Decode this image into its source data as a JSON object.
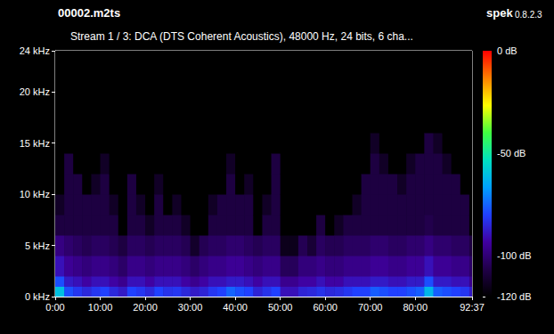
{
  "chart_data": {
    "type": "heatmap",
    "title": "00002.m2ts",
    "subtitle": "Stream 1 / 3: DCA (DTS Coherent Acoustics), 48000 Hz, 24 bits, 6 cha...",
    "annotations": [
      "spek",
      "0.8.2.3"
    ],
    "grid": false,
    "xlim": [
      0,
      5557
    ],
    "xticks": [
      {
        "value": 0,
        "label": "0:00"
      },
      {
        "value": 600,
        "label": "10:00"
      },
      {
        "value": 1200,
        "label": "20:00"
      },
      {
        "value": 1800,
        "label": "30:00"
      },
      {
        "value": 2400,
        "label": "40:00"
      },
      {
        "value": 3000,
        "label": "50:00"
      },
      {
        "value": 3600,
        "label": "60:00"
      },
      {
        "value": 4200,
        "label": "70:00"
      },
      {
        "value": 4800,
        "label": "80:00"
      },
      {
        "value": 5557,
        "label": "92:37"
      }
    ],
    "ylim": [
      0,
      24
    ],
    "yticks": [
      {
        "value": 0,
        "label": "0 kHz"
      },
      {
        "value": 5,
        "label": "5 kHz"
      },
      {
        "value": 10,
        "label": "10 kHz"
      },
      {
        "value": 15,
        "label": "15 kHz"
      },
      {
        "value": 20,
        "label": "20 kHz"
      },
      {
        "value": 24,
        "label": "24 kHz"
      }
    ],
    "x_edges": [
      0,
      120,
      240,
      360,
      480,
      600,
      720,
      840,
      960,
      1080,
      1200,
      1320,
      1440,
      1560,
      1680,
      1800,
      1920,
      2040,
      2160,
      2280,
      2400,
      2520,
      2640,
      2760,
      2880,
      3000,
      3120,
      3240,
      3360,
      3480,
      3600,
      3720,
      3840,
      3960,
      4080,
      4200,
      4320,
      4440,
      4560,
      4680,
      4800,
      4920,
      5040,
      5160,
      5280,
      5400,
      5520,
      5557
    ],
    "y_edges": [
      0,
      1,
      2,
      4,
      6,
      8,
      10,
      12,
      14,
      16,
      18,
      24
    ],
    "cells": [
      [
        -60,
        -78,
        -90,
        -98,
        -108,
        -113,
        -120,
        -120,
        -120,
        -120,
        -120
      ],
      [
        -78,
        -88,
        -95,
        -101,
        -108,
        -108,
        -108,
        -108,
        -120,
        -120,
        -120
      ],
      [
        -82,
        -90,
        -97,
        -103,
        -108,
        -108,
        -108,
        -120,
        -120,
        -120,
        -120
      ],
      [
        -85,
        -93,
        -99,
        -105,
        -108,
        -108,
        -120,
        -120,
        -120,
        -120,
        -120
      ],
      [
        -82,
        -90,
        -97,
        -103,
        -108,
        -108,
        -113,
        -120,
        -120,
        -120,
        -120
      ],
      [
        -80,
        -90,
        -97,
        -103,
        -108,
        -108,
        -108,
        -113,
        -120,
        -120,
        -120
      ],
      [
        -85,
        -93,
        -99,
        -105,
        -108,
        -113,
        -120,
        -120,
        -120,
        -120,
        -120
      ],
      [
        -88,
        -96,
        -102,
        -108,
        -120,
        -120,
        -120,
        -120,
        -120,
        -120,
        -120
      ],
      [
        -80,
        -90,
        -97,
        -103,
        -108,
        -108,
        -108,
        -120,
        -120,
        -120,
        -120
      ],
      [
        -82,
        -90,
        -97,
        -103,
        -108,
        -113,
        -120,
        -120,
        -120,
        -120,
        -120
      ],
      [
        -85,
        -93,
        -99,
        -105,
        -113,
        -120,
        -120,
        -120,
        -120,
        -120,
        -120
      ],
      [
        -80,
        -90,
        -97,
        -103,
        -108,
        -108,
        -113,
        -120,
        -120,
        -120,
        -120
      ],
      [
        -83,
        -90,
        -97,
        -103,
        -108,
        -120,
        -120,
        -120,
        -120,
        -120,
        -120
      ],
      [
        -82,
        -90,
        -97,
        -103,
        -108,
        -113,
        -120,
        -120,
        -120,
        -120,
        -120
      ],
      [
        -85,
        -93,
        -99,
        -105,
        -113,
        -120,
        -120,
        -120,
        -120,
        -120,
        -120
      ],
      [
        -88,
        -96,
        -102,
        -112,
        -120,
        -120,
        -120,
        -120,
        -120,
        -120,
        -120
      ],
      [
        -86,
        -93,
        -99,
        -105,
        -120,
        -120,
        -120,
        -120,
        -120,
        -120,
        -120
      ],
      [
        -82,
        -90,
        -97,
        -103,
        -108,
        -113,
        -120,
        -120,
        -120,
        -120,
        -120
      ],
      [
        -80,
        -90,
        -97,
        -103,
        -108,
        -108,
        -120,
        -120,
        -120,
        -120,
        -120
      ],
      [
        -75,
        -88,
        -95,
        -101,
        -108,
        -108,
        -108,
        -113,
        -120,
        -120,
        -120
      ],
      [
        -78,
        -88,
        -95,
        -101,
        -108,
        -108,
        -120,
        -120,
        -120,
        -120,
        -120
      ],
      [
        -80,
        -90,
        -97,
        -103,
        -108,
        -108,
        -113,
        -120,
        -120,
        -120,
        -120
      ],
      [
        -86,
        -93,
        -99,
        -105,
        -120,
        -120,
        -120,
        -120,
        -120,
        -120,
        -120
      ],
      [
        -83,
        -90,
        -97,
        -103,
        -108,
        -113,
        -120,
        -120,
        -120,
        -120,
        -120
      ],
      [
        -80,
        -90,
        -97,
        -103,
        -108,
        -108,
        -108,
        -108,
        -120,
        -120,
        -120
      ],
      [
        -90,
        -96,
        -104,
        -115,
        -120,
        -120,
        -120,
        -120,
        -120,
        -120,
        -120
      ],
      [
        -90,
        -96,
        -104,
        -115,
        -120,
        -120,
        -120,
        -120,
        -120,
        -120,
        -120
      ],
      [
        -86,
        -93,
        -99,
        -105,
        -120,
        -120,
        -120,
        -120,
        -120,
        -120,
        -120
      ],
      [
        -85,
        -93,
        -99,
        -110,
        -120,
        -120,
        -120,
        -120,
        -120,
        -120,
        -120
      ],
      [
        -83,
        -90,
        -97,
        -103,
        -108,
        -120,
        -120,
        -120,
        -120,
        -120,
        -120
      ],
      [
        -85,
        -93,
        -99,
        -105,
        -120,
        -120,
        -120,
        -120,
        -120,
        -120,
        -120
      ],
      [
        -84,
        -93,
        -99,
        -105,
        -113,
        -120,
        -120,
        -120,
        -120,
        -120,
        -120
      ],
      [
        -82,
        -90,
        -97,
        -103,
        -108,
        -120,
        -120,
        -120,
        -120,
        -120,
        -120
      ],
      [
        -80,
        -90,
        -97,
        -103,
        -108,
        -113,
        -120,
        -120,
        -120,
        -120,
        -120
      ],
      [
        -80,
        -90,
        -97,
        -103,
        -108,
        -108,
        -108,
        -120,
        -120,
        -120,
        -120
      ],
      [
        -76,
        -88,
        -95,
        -101,
        -108,
        -108,
        -108,
        -108,
        -113,
        -120,
        -120
      ],
      [
        -78,
        -88,
        -95,
        -101,
        -108,
        -108,
        -108,
        -113,
        -120,
        -120,
        -120
      ],
      [
        -80,
        -90,
        -97,
        -103,
        -108,
        -108,
        -108,
        -120,
        -120,
        -120,
        -120
      ],
      [
        -80,
        -90,
        -97,
        -103,
        -108,
        -108,
        -113,
        -120,
        -120,
        -120,
        -120
      ],
      [
        -78,
        -88,
        -95,
        -101,
        -108,
        -108,
        -108,
        -113,
        -120,
        -120,
        -120
      ],
      [
        -76,
        -88,
        -95,
        -101,
        -108,
        -108,
        -108,
        -108,
        -120,
        -120,
        -120
      ],
      [
        -62,
        -78,
        -90,
        -98,
        -106,
        -108,
        -108,
        -108,
        -108,
        -120,
        -120
      ],
      [
        -76,
        -88,
        -95,
        -101,
        -108,
        -108,
        -108,
        -108,
        -113,
        -120,
        -120
      ],
      [
        -78,
        -88,
        -95,
        -101,
        -108,
        -108,
        -108,
        -113,
        -120,
        -120,
        -120
      ],
      [
        -80,
        -90,
        -97,
        -103,
        -108,
        -108,
        -108,
        -120,
        -120,
        -120,
        -120
      ],
      [
        -82,
        -90,
        -97,
        -103,
        -108,
        -108,
        -120,
        -120,
        -120,
        -120,
        -120
      ],
      [
        -88,
        -96,
        -102,
        -108,
        -120,
        -120,
        -120,
        -120,
        -120,
        -120,
        -120
      ]
    ],
    "colorbar": {
      "range": [
        -120,
        0
      ],
      "ticks": [
        {
          "value": 0,
          "label": "0 dB"
        },
        {
          "value": -50,
          "label": "-50 dB"
        },
        {
          "value": -100,
          "label": "-100 dB"
        },
        {
          "value": -120,
          "label": "-120 dB"
        }
      ],
      "colors": [
        "#000000",
        "#200048",
        "#4000a0",
        "#2040ff",
        "#00a0ff",
        "#00e0c0",
        "#40ff40",
        "#ffff00",
        "#ff8000",
        "#ff0000"
      ]
    }
  }
}
